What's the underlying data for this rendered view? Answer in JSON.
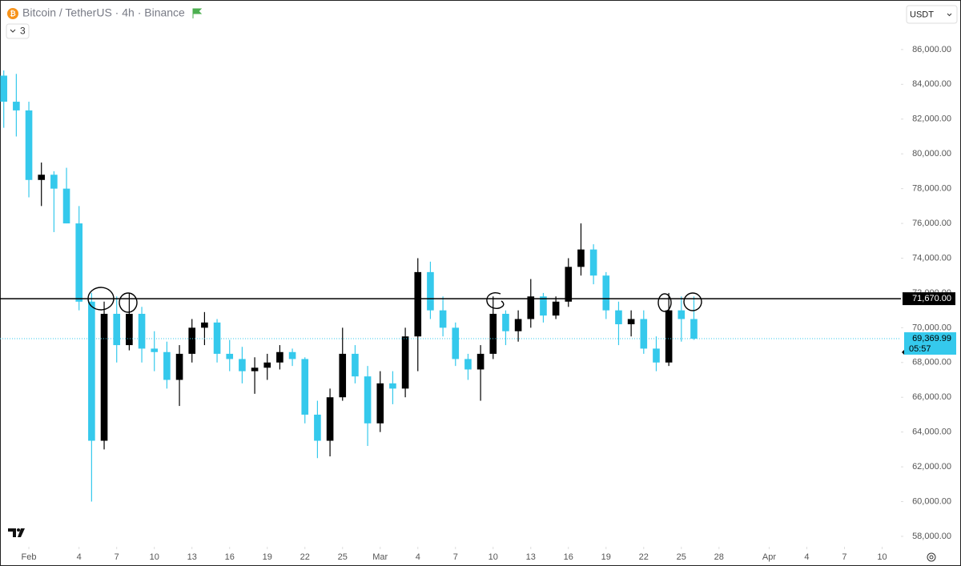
{
  "header": {
    "title": "Bitcoin / TetherUS · 4h · Binance",
    "currency": "USDT",
    "indicator_count": "3"
  },
  "chart_data": {
    "type": "candlestick",
    "x": [
      -2,
      -1,
      0,
      1,
      2,
      3,
      4,
      5,
      6,
      7,
      8,
      9,
      10,
      11,
      12,
      13,
      14,
      15,
      16,
      17,
      18,
      19,
      20,
      21,
      22,
      23,
      24,
      25,
      26,
      27,
      28,
      29,
      30,
      31,
      32,
      33,
      34,
      35,
      36,
      37,
      38,
      39,
      40,
      41,
      42,
      43,
      44,
      45,
      46,
      47,
      48,
      49,
      50,
      51,
      52,
      53
    ],
    "open": [
      84500,
      83000,
      82500,
      78500,
      78800,
      78000,
      76000,
      71500,
      63500,
      70800,
      69000,
      70800,
      68800,
      68600,
      67000,
      68500,
      70000,
      70300,
      68500,
      68200,
      67500,
      67700,
      68000,
      68600,
      68200,
      65000,
      63500,
      66000,
      68500,
      67200,
      64500,
      66800,
      66500,
      69500,
      73200,
      71000,
      70000,
      68200,
      67600,
      68500,
      70800,
      69800,
      70500,
      71800,
      70700,
      71500,
      73500,
      74500,
      73000,
      71000,
      70200,
      70500,
      68800,
      68000,
      71000,
      70500
    ],
    "high": [
      84800,
      84600,
      83000,
      79500,
      79000,
      79200,
      77000,
      72000,
      71500,
      71800,
      72000,
      71200,
      69800,
      69200,
      69000,
      70500,
      70900,
      70500,
      69300,
      68900,
      68300,
      68500,
      69000,
      68800,
      68300,
      65800,
      66500,
      70000,
      69000,
      67800,
      67500,
      67500,
      70000,
      74000,
      73800,
      71800,
      70300,
      68500,
      69000,
      71800,
      71000,
      71000,
      72800,
      72000,
      71800,
      74000,
      76000,
      74800,
      73200,
      71500,
      71000,
      71000,
      69500,
      72000,
      71800,
      71800
    ],
    "low": [
      81500,
      81000,
      77500,
      77000,
      75500,
      76000,
      71000,
      60000,
      63000,
      68000,
      68700,
      68000,
      67500,
      66500,
      65500,
      68000,
      69000,
      68000,
      67500,
      66800,
      66200,
      67000,
      67600,
      67800,
      64500,
      62500,
      62600,
      65800,
      66800,
      63200,
      64000,
      65600,
      66000,
      67500,
      70500,
      69500,
      67800,
      67000,
      65800,
      68200,
      69000,
      69200,
      70000,
      70300,
      70500,
      71200,
      73000,
      72500,
      70500,
      69000,
      69500,
      68500,
      67500,
      67800,
      69200,
      69300
    ],
    "close": [
      83000,
      82500,
      78500,
      78800,
      78000,
      76000,
      71500,
      63500,
      70800,
      69000,
      70800,
      68800,
      68600,
      67000,
      68500,
      70000,
      70300,
      68500,
      68200,
      67500,
      67700,
      68000,
      68600,
      68200,
      65000,
      63500,
      66000,
      68500,
      67200,
      64500,
      66800,
      66500,
      69500,
      73200,
      71000,
      70000,
      68200,
      67600,
      68500,
      70800,
      69800,
      70500,
      71800,
      70700,
      71500,
      73500,
      74500,
      73000,
      71000,
      70200,
      70500,
      68800,
      68000,
      71000,
      70500,
      69370
    ],
    "up_color": "#000000",
    "down_color": "#35c9ec",
    "xlim": [
      -2.3,
      69.5
    ],
    "ylim": [
      57400,
      88850
    ],
    "xticks": [
      {
        "value": 0,
        "label": "Feb"
      },
      4,
      7,
      10,
      13,
      16,
      19,
      22,
      25,
      {
        "value": 28,
        "label": "Mar"
      },
      {
        "value": 31,
        "label": "4"
      },
      {
        "value": 34,
        "label": "7"
      },
      {
        "value": 37,
        "label": "10"
      },
      {
        "value": 40,
        "label": "13"
      },
      {
        "value": 43,
        "label": "16"
      },
      {
        "value": 46,
        "label": "19"
      },
      {
        "value": 49,
        "label": "22"
      },
      {
        "value": 52,
        "label": "25"
      },
      {
        "value": 55,
        "label": "28"
      },
      {
        "value": 59,
        "label": "Apr"
      },
      {
        "value": 62,
        "label": "4"
      },
      {
        "value": 65,
        "label": "7"
      },
      {
        "value": 68,
        "label": "10"
      }
    ],
    "yticks": [
      {
        "value": 58000,
        "label": "58,000.00"
      },
      {
        "value": 60000,
        "label": "60,000.00"
      },
      {
        "value": 62000,
        "label": "62,000.00"
      },
      {
        "value": 64000,
        "label": "64,000.00"
      },
      {
        "value": 66000,
        "label": "66,000.00"
      },
      {
        "value": 68000,
        "label": "68,000.00"
      },
      {
        "value": 70000,
        "label": "70,000.00"
      },
      {
        "value": 72000,
        "label": "72,000.00"
      },
      {
        "value": 74000,
        "label": "74,000.00"
      },
      {
        "value": 76000,
        "label": "76,000.00"
      },
      {
        "value": 78000,
        "label": "78,000.00"
      },
      {
        "value": 80000,
        "label": "80,000.00"
      },
      {
        "value": 82000,
        "label": "82,000.00"
      },
      {
        "value": 84000,
        "label": "84,000.00"
      },
      {
        "value": 86000,
        "label": "86,000.00"
      }
    ],
    "horizontal_line": {
      "value": 71670,
      "label": "71,670.00"
    },
    "last_price": {
      "value": 69369.99,
      "label": "69,369.99",
      "countdown": "05:57"
    }
  }
}
